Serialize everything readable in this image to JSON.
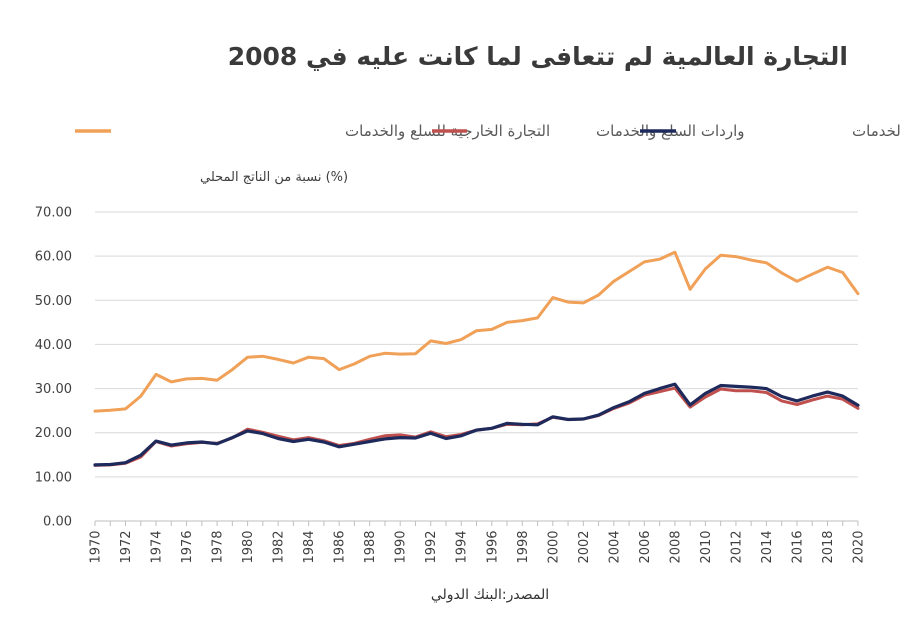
{
  "title": "التجارة العالمية لم تتعافى لما كانت عليه في 2008",
  "chart_data": {
    "type": "line",
    "title": "التجارة العالمية لم تتعافى لما كانت عليه في 2008",
    "ylabel": "(%) نسبة من الناتج المحلي",
    "xlabel": "",
    "source": "المصدر:البنك الدولي",
    "ylim": [
      0,
      70
    ],
    "yticks": [
      "0.00",
      "10.00",
      "20.00",
      "30.00",
      "40.00",
      "50.00",
      "60.00",
      "70.00"
    ],
    "x": [
      1970,
      1971,
      1972,
      1973,
      1974,
      1975,
      1976,
      1977,
      1978,
      1979,
      1980,
      1981,
      1982,
      1983,
      1984,
      1985,
      1986,
      1987,
      1988,
      1989,
      1990,
      1991,
      1992,
      1993,
      1994,
      1995,
      1996,
      1997,
      1998,
      1999,
      2000,
      2001,
      2002,
      2003,
      2004,
      2005,
      2006,
      2007,
      2008,
      2009,
      2010,
      2011,
      2012,
      2013,
      2014,
      2015,
      2016,
      2017,
      2018,
      2019,
      2020
    ],
    "xtick_labels": [
      "1970",
      "1972",
      "1974",
      "1976",
      "1978",
      "1980",
      "1982",
      "1984",
      "1986",
      "1988",
      "1990",
      "1992",
      "1994",
      "1996",
      "1998",
      "2000",
      "2002",
      "2004",
      "2006",
      "2008",
      "2010",
      "2012",
      "2014",
      "2016",
      "2018",
      "2020"
    ],
    "grid": true,
    "legend_position": "top",
    "series": [
      {
        "name": "التجارة الخارجية للسلع والخدمات",
        "color": "#F0A057",
        "values": [
          24.9,
          25.1,
          25.4,
          28.3,
          33.2,
          31.5,
          32.2,
          32.3,
          31.9,
          34.3,
          37.1,
          37.3,
          36.6,
          35.8,
          37.1,
          36.8,
          34.3,
          35.6,
          37.3,
          38.0,
          37.8,
          37.9,
          40.8,
          40.2,
          41.1,
          43.1,
          43.4,
          45.0,
          45.4,
          46.0,
          50.6,
          49.6,
          49.4,
          51.2,
          54.3,
          56.5,
          58.7,
          59.3,
          60.9,
          52.5,
          57.1,
          60.2,
          59.9,
          59.1,
          58.5,
          56.2,
          54.3,
          55.9,
          57.5,
          56.3,
          51.5
        ]
      },
      {
        "name": "واردات السلع والخدمات",
        "color": "#C0504D",
        "values": [
          12.6,
          12.7,
          13.1,
          14.5,
          18.0,
          17.0,
          17.5,
          17.8,
          17.6,
          18.8,
          20.8,
          20.1,
          19.2,
          18.4,
          18.9,
          18.2,
          17.1,
          17.6,
          18.5,
          19.3,
          19.5,
          19.0,
          20.2,
          19.1,
          19.6,
          20.6,
          21.0,
          21.9,
          21.8,
          22.0,
          23.5,
          23.0,
          23.1,
          23.9,
          25.5,
          26.7,
          28.5,
          29.3,
          30.1,
          25.8,
          28.1,
          29.9,
          29.5,
          29.5,
          29.1,
          27.2,
          26.4,
          27.4,
          28.3,
          27.6,
          25.5
        ]
      },
      {
        "name": "صادرات السلع والخدمات",
        "color": "#1F2A5C",
        "values": [
          12.7,
          12.8,
          13.2,
          14.9,
          18.1,
          17.2,
          17.7,
          17.9,
          17.5,
          18.9,
          20.4,
          19.8,
          18.7,
          18.0,
          18.5,
          17.9,
          16.8,
          17.4,
          18.0,
          18.6,
          18.9,
          18.8,
          19.9,
          18.7,
          19.3,
          20.6,
          21.0,
          22.1,
          21.9,
          21.8,
          23.6,
          23.0,
          23.1,
          24.0,
          25.7,
          27.0,
          28.9,
          30.0,
          31.0,
          26.3,
          28.9,
          30.7,
          30.5,
          30.3,
          30.0,
          28.2,
          27.2,
          28.3,
          29.2,
          28.3,
          26.2
        ]
      }
    ]
  }
}
